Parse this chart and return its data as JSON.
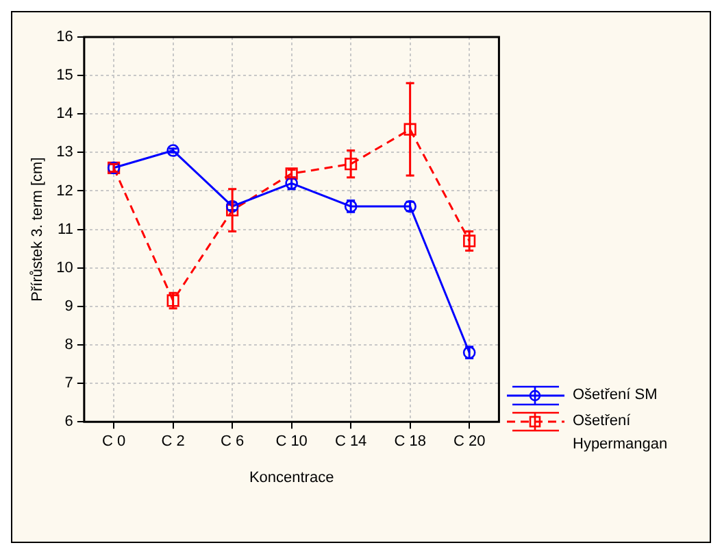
{
  "chart_data": {
    "type": "line",
    "xlabel": "Koncentrace",
    "ylabel": "Přírůstek 3. term [cm]",
    "categories": [
      "C 0",
      "C 2",
      "C 6",
      "C 10",
      "C 14",
      "C 18",
      "C 20"
    ],
    "ylim": [
      6,
      16
    ],
    "yticks": [
      6,
      7,
      8,
      9,
      10,
      11,
      12,
      13,
      14,
      15,
      16
    ],
    "grid": true,
    "legend": "right",
    "series": [
      {
        "name": "Ošetření SM",
        "color": "#0000ff",
        "marker": "circle",
        "line_style": "solid",
        "values": [
          12.6,
          13.05,
          11.6,
          12.2,
          11.6,
          11.6,
          7.8
        ],
        "errors": [
          0.1,
          0.05,
          0.1,
          0.15,
          0.15,
          0.12,
          0.15
        ]
      },
      {
        "name": "Ošetření Hypermangan",
        "color": "#ff0000",
        "marker": "square",
        "line_style": "dashed",
        "values": [
          12.6,
          9.15,
          11.5,
          12.45,
          12.7,
          13.6,
          10.7
        ],
        "errors": [
          0.1,
          0.2,
          0.55,
          0.1,
          0.35,
          1.2,
          0.25
        ]
      }
    ]
  }
}
